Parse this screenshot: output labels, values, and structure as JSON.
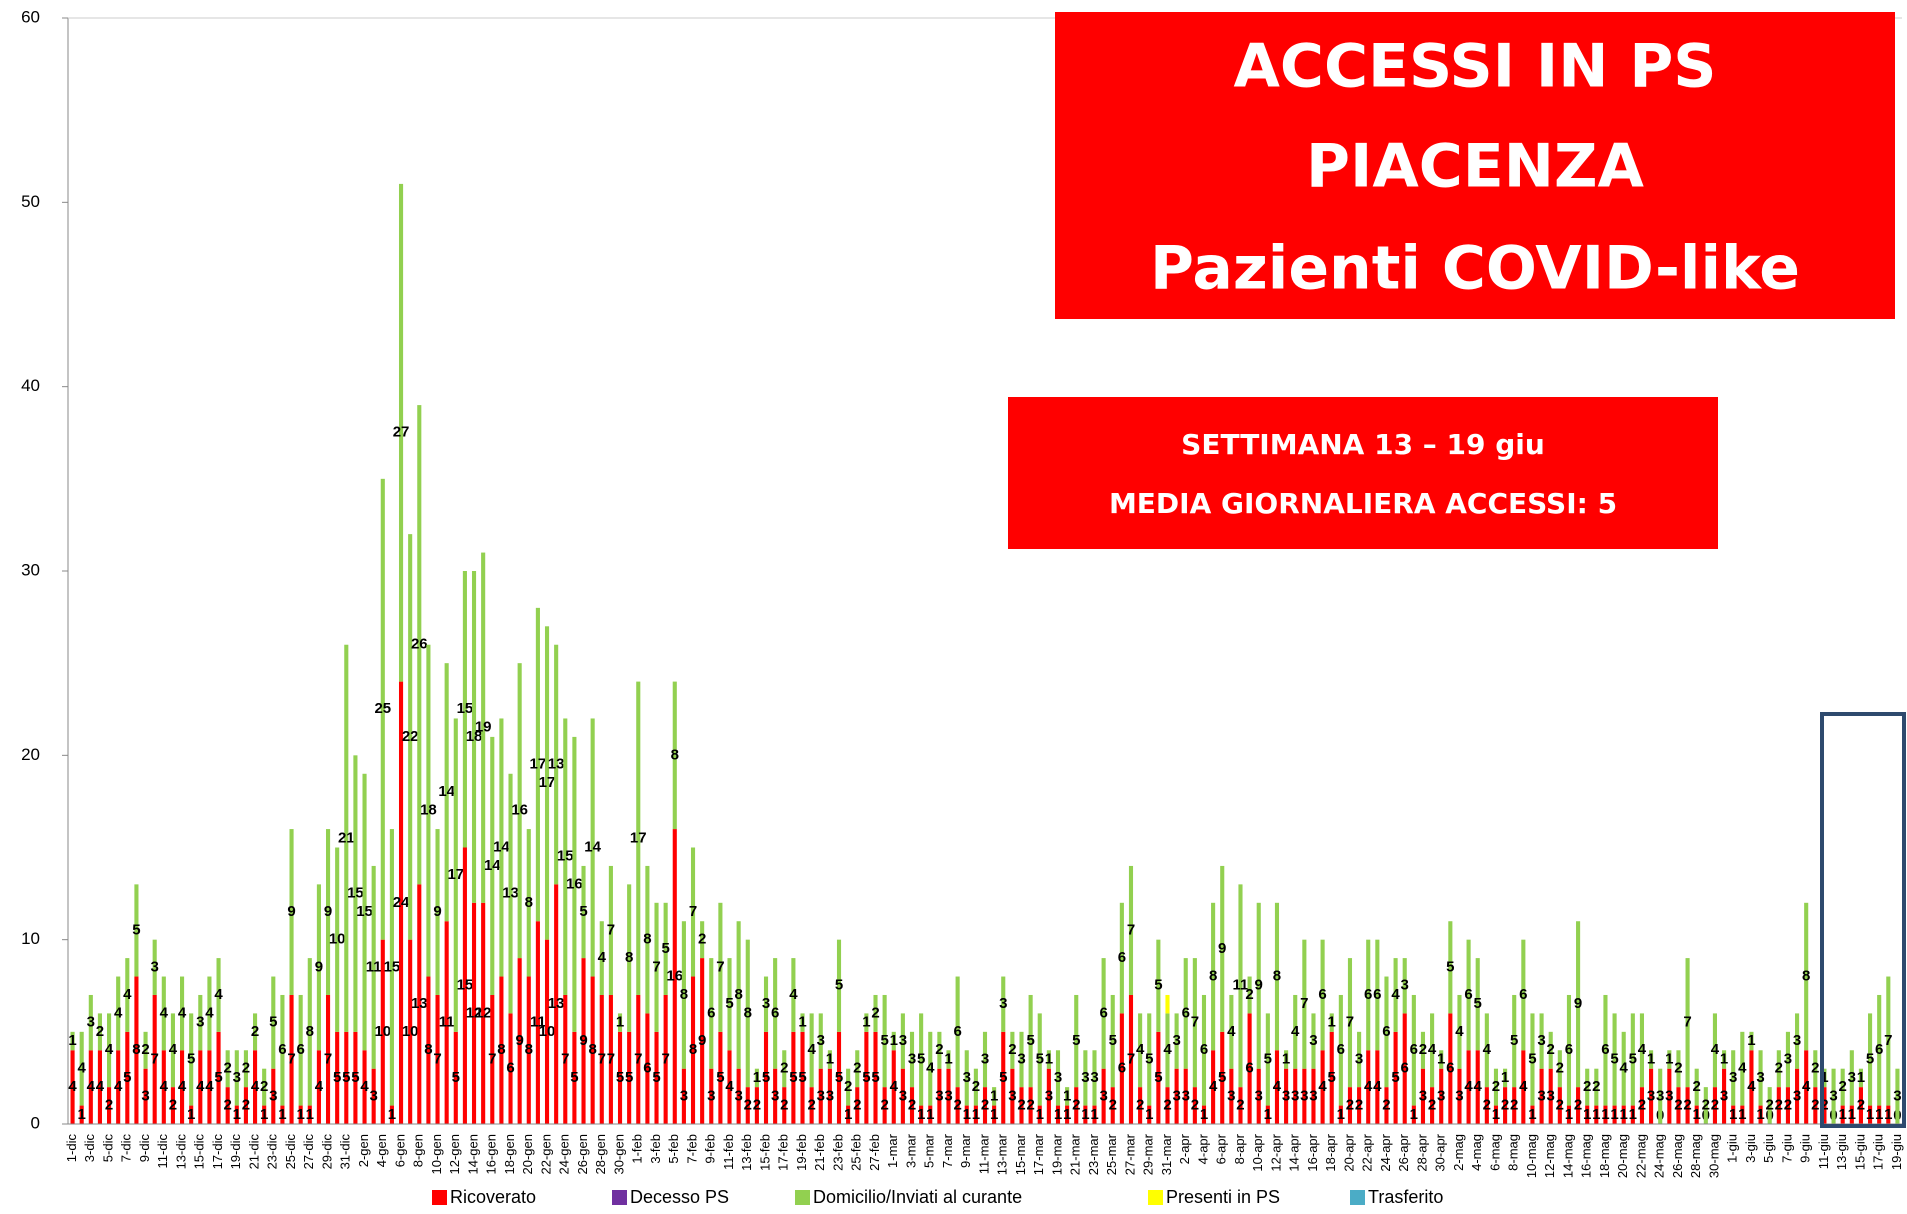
{
  "chart_data": {
    "type": "stacked_bar",
    "title": [
      "ACCESSI IN PS",
      "PIACENZA",
      "Pazienti COVID-like"
    ],
    "annotations": [
      "SETTIMANA  13 – 19 giu",
      "MEDIA GIORNALIERA ACCESSI: 5"
    ],
    "categories": [
      "1-dic",
      null,
      "3-dic",
      null,
      "5-dic",
      null,
      "7-dic",
      null,
      "9-dic",
      null,
      "11-dic",
      null,
      "13-dic",
      null,
      "15-dic",
      null,
      "17-dic",
      null,
      "19-dic",
      null,
      "21-dic",
      null,
      "23-dic",
      null,
      "25-dic",
      null,
      "27-dic",
      null,
      "29-dic",
      null,
      "31-dic",
      null,
      "2-gen",
      null,
      "4-gen",
      null,
      "6-gen",
      null,
      "8-gen",
      null,
      "10-gen",
      null,
      "12-gen",
      null,
      "14-gen",
      null,
      "16-gen",
      null,
      "18-gen",
      null,
      "20-gen",
      null,
      "22-gen",
      null,
      "24-gen",
      null,
      "26-gen",
      null,
      "28-gen",
      null,
      "30-gen",
      null,
      "1-feb",
      null,
      "3-feb",
      null,
      "5-feb",
      null,
      "7-feb",
      null,
      "9-feb",
      null,
      "11-feb",
      null,
      "13-feb",
      null,
      "15-feb",
      null,
      "17-feb",
      null,
      "19-feb",
      null,
      "21-feb",
      null,
      "23-feb",
      null,
      "25-feb",
      null,
      "27-feb",
      null,
      "1-mar",
      null,
      "3-mar",
      null,
      "5-mar",
      null,
      "7-mar",
      null,
      "9-mar",
      null,
      "11-mar",
      null,
      "13-mar",
      null,
      "15-mar",
      null,
      "17-mar",
      null,
      "19-mar",
      null,
      "21-mar",
      null,
      "23-mar",
      null,
      "25-mar",
      null,
      "27-mar",
      null,
      "29-mar",
      null,
      "31-mar",
      null,
      "2-apr",
      null,
      "4-apr",
      null,
      "6-apr",
      null,
      "8-apr",
      null,
      "10-apr",
      null,
      "12-apr",
      null,
      "14-apr",
      null,
      "16-apr",
      null,
      "18-apr",
      null,
      "20-apr",
      null,
      "22-apr",
      null,
      "24-apr",
      null,
      "26-apr",
      null,
      "28-apr",
      null,
      "30-apr",
      null,
      "2-mag",
      null,
      "4-mag",
      null,
      "6-mag",
      null,
      "8-mag",
      null,
      "10-mag",
      null,
      "12-mag",
      null,
      "14-mag",
      null,
      "16-mag",
      null,
      "18-mag",
      null,
      "20-mag",
      null,
      "22-mag",
      null,
      "24-mag",
      null,
      "26-mag",
      null,
      "28-mag",
      null,
      "30-mag",
      null,
      "1-giu",
      null,
      "3-giu",
      null,
      "5-giu",
      null,
      "7-giu",
      null,
      "9-giu",
      null,
      "11-giu",
      null,
      "13-giu",
      null,
      "15-giu",
      null,
      "17-giu",
      null,
      "19-giu"
    ],
    "series": [
      {
        "name": "Ricoverato",
        "color": "#ff0000",
        "labels": true,
        "values": [
          4,
          1,
          4,
          4,
          2,
          4,
          5,
          8,
          3,
          7,
          4,
          2,
          4,
          1,
          4,
          4,
          5,
          2,
          1,
          2,
          4,
          1,
          3,
          1,
          7,
          1,
          1,
          4,
          7,
          5,
          5,
          5,
          4,
          3,
          10,
          1,
          24,
          10,
          13,
          8,
          7,
          11,
          5,
          15,
          12,
          12,
          7,
          8,
          6,
          9,
          8,
          11,
          10,
          13,
          7,
          5,
          9,
          8,
          7,
          7,
          5,
          5,
          7,
          6,
          5,
          7,
          16,
          3,
          8,
          9,
          3,
          5,
          4,
          3,
          2,
          2,
          5,
          3,
          2,
          5,
          5,
          2,
          3,
          3,
          5,
          1,
          2,
          5,
          5,
          2,
          4,
          3,
          2,
          1,
          1,
          3,
          3,
          2,
          1,
          1,
          2,
          1,
          5,
          3,
          2,
          2,
          1,
          3,
          1,
          1,
          2,
          1,
          1,
          3,
          2,
          6,
          7,
          2,
          1,
          5,
          2,
          3,
          3,
          2,
          1,
          4,
          5,
          3,
          2,
          6,
          3,
          1,
          4,
          3,
          3,
          3,
          3,
          4,
          5,
          1,
          2,
          2,
          4,
          4,
          2,
          5,
          6,
          1,
          3,
          2,
          3,
          6,
          3,
          4,
          4,
          2,
          1,
          2,
          2,
          4,
          1,
          3,
          3,
          2,
          1,
          2,
          1,
          1,
          1,
          1,
          1,
          1,
          2,
          3,
          0,
          3,
          2,
          2,
          1,
          0,
          2,
          3,
          1,
          1,
          4,
          1,
          0,
          2,
          2,
          3,
          4,
          2,
          2,
          0,
          1,
          1,
          2,
          1,
          1,
          1,
          0
        ]
      },
      {
        "name": "Decesso PS",
        "color": "#7030a0",
        "labels": false,
        "values": [
          0,
          0,
          0,
          0,
          0,
          0,
          0,
          0,
          0,
          0,
          0,
          0,
          0,
          0,
          0,
          0,
          0,
          0,
          0,
          0,
          0,
          0,
          0,
          0,
          0,
          0,
          0,
          0,
          0,
          0,
          0,
          0,
          0,
          0,
          0,
          0,
          0,
          0,
          0,
          0,
          0,
          0,
          0,
          0,
          0,
          0,
          0,
          0,
          0,
          0,
          0,
          0,
          0,
          0,
          0,
          0,
          0,
          0,
          0,
          0,
          0,
          0,
          0,
          0,
          0,
          0,
          0,
          0,
          0,
          0,
          0,
          0,
          0,
          0,
          0,
          0,
          0,
          0,
          0,
          0,
          0,
          0,
          0,
          0,
          0,
          0,
          0,
          0,
          0,
          0,
          0,
          0,
          0,
          0,
          0,
          0,
          0,
          0,
          0,
          0,
          0,
          0,
          0,
          0,
          0,
          0,
          0,
          0,
          0,
          0,
          0,
          0,
          0,
          0,
          0,
          0,
          0,
          0,
          0,
          0,
          0,
          0,
          0,
          0,
          0,
          0,
          0,
          0,
          0,
          0,
          0,
          0,
          0,
          0,
          0,
          0,
          0,
          0,
          0,
          0,
          0,
          0,
          0,
          0,
          0,
          0,
          0,
          0,
          0,
          0,
          0,
          0,
          0,
          0,
          0,
          0,
          0,
          0,
          0,
          0,
          0,
          0,
          0,
          0,
          0,
          0,
          0,
          0,
          0,
          0,
          0,
          0,
          0,
          0,
          0,
          0,
          0,
          0,
          0,
          0,
          0,
          0,
          0,
          0,
          0,
          0,
          0,
          0,
          0,
          0,
          0,
          0,
          0,
          0,
          0,
          0,
          0,
          0,
          0,
          0,
          0
        ]
      },
      {
        "name": "Domicilio/Inviati al curante",
        "color": "#92d050",
        "labels": true,
        "values": [
          1,
          4,
          3,
          2,
          4,
          4,
          4,
          5,
          2,
          3,
          4,
          4,
          4,
          5,
          3,
          4,
          4,
          2,
          3,
          2,
          2,
          2,
          5,
          6,
          9,
          6,
          8,
          9,
          9,
          10,
          21,
          15,
          15,
          11,
          25,
          15,
          27,
          22,
          26,
          18,
          9,
          14,
          17,
          15,
          18,
          19,
          14,
          14,
          13,
          16,
          8,
          17,
          17,
          13,
          15,
          16,
          5,
          14,
          4,
          7,
          1,
          8,
          17,
          8,
          7,
          5,
          8,
          8,
          7,
          2,
          6,
          7,
          5,
          8,
          8,
          1,
          3,
          6,
          2,
          4,
          1,
          4,
          3,
          1,
          5,
          2,
          2,
          1,
          2,
          5,
          1,
          3,
          3,
          5,
          4,
          2,
          1,
          6,
          3,
          2,
          3,
          1,
          3,
          2,
          3,
          5,
          5,
          1,
          3,
          1,
          5,
          3,
          3,
          6,
          5,
          6,
          7,
          4,
          5,
          5,
          4,
          3,
          6,
          7,
          6,
          8,
          9,
          4,
          11,
          2,
          9,
          5,
          8,
          1,
          4,
          7,
          3,
          6,
          1,
          6,
          7,
          3,
          6,
          6,
          6,
          4,
          3,
          6,
          2,
          4,
          1,
          5,
          4,
          6,
          5,
          4,
          2,
          1,
          5,
          6,
          5,
          3,
          2,
          2,
          6,
          9,
          2,
          2,
          6,
          5,
          4,
          5,
          4,
          1,
          3,
          1,
          2,
          7,
          2,
          2,
          4,
          1,
          3,
          4,
          1,
          3,
          2,
          2,
          3,
          3,
          8,
          2,
          1,
          3,
          2,
          3,
          1,
          5,
          6,
          7,
          3
        ]
      },
      {
        "name": "Presenti in PS",
        "color": "#ffff00",
        "labels": false,
        "values": [
          0,
          0,
          0,
          0,
          0,
          0,
          0,
          0,
          0,
          0,
          0,
          0,
          0,
          0,
          0,
          0,
          0,
          0,
          0,
          0,
          0,
          0,
          0,
          0,
          0,
          0,
          0,
          0,
          0,
          0,
          0,
          0,
          0,
          0,
          0,
          0,
          0,
          0,
          0,
          0,
          0,
          0,
          0,
          0,
          0,
          0,
          0,
          0,
          0,
          0,
          0,
          0,
          0,
          0,
          0,
          0,
          0,
          0,
          0,
          0,
          0,
          0,
          0,
          0,
          0,
          0,
          0,
          0,
          0,
          0,
          0,
          0,
          0,
          0,
          0,
          0,
          0,
          0,
          0,
          0,
          0,
          0,
          0,
          0,
          0,
          0,
          0,
          0,
          0,
          0,
          0,
          0,
          0,
          0,
          0,
          0,
          0,
          0,
          0,
          0,
          0,
          0,
          0,
          0,
          0,
          0,
          0,
          0,
          0,
          0,
          0,
          0,
          0,
          0,
          0,
          0,
          0,
          0,
          0,
          0,
          1,
          0,
          0,
          0,
          0,
          0,
          0,
          0,
          0,
          0,
          0,
          0,
          0,
          0,
          0,
          0,
          0,
          0,
          0,
          0,
          0,
          0,
          0,
          0,
          0,
          0,
          0,
          0,
          0,
          0,
          0,
          0,
          0,
          0,
          0,
          0,
          0,
          0,
          0,
          0,
          0,
          0,
          0,
          0,
          0,
          0,
          0,
          0,
          0,
          0,
          0,
          0,
          0,
          0,
          0,
          0,
          0,
          0,
          0,
          0,
          0,
          0,
          0,
          0,
          0,
          0,
          0,
          0,
          0,
          0,
          0,
          0,
          0,
          0,
          0,
          0,
          0,
          0,
          0,
          0,
          0
        ]
      },
      {
        "name": "Trasferito",
        "color": "#4bacc6",
        "labels": false,
        "values": [
          0,
          0,
          0,
          0,
          0,
          0,
          0,
          0,
          0,
          0,
          0,
          0,
          0,
          0,
          0,
          0,
          0,
          0,
          0,
          0,
          0,
          0,
          0,
          0,
          0,
          0,
          0,
          0,
          0,
          0,
          0,
          0,
          0,
          0,
          0,
          0,
          0,
          0,
          0,
          0,
          0,
          0,
          0,
          0,
          0,
          0,
          0,
          0,
          0,
          0,
          0,
          0,
          0,
          0,
          0,
          0,
          0,
          0,
          0,
          0,
          0,
          0,
          0,
          0,
          0,
          0,
          0,
          0,
          0,
          0,
          0,
          0,
          0,
          0,
          0,
          0,
          0,
          0,
          0,
          0,
          0,
          0,
          0,
          0,
          0,
          0,
          0,
          0,
          0,
          0,
          0,
          0,
          0,
          0,
          0,
          0,
          0,
          0,
          0,
          0,
          0,
          0,
          0,
          0,
          0,
          0,
          0,
          0,
          0,
          0,
          0,
          0,
          0,
          0,
          0,
          0,
          0,
          0,
          0,
          0,
          0,
          0,
          0,
          0,
          0,
          0,
          0,
          0,
          0,
          0,
          0,
          0,
          0,
          0,
          0,
          0,
          0,
          0,
          0,
          0,
          0,
          0,
          0,
          0,
          0,
          0,
          0,
          0,
          0,
          0,
          0,
          0,
          0,
          0,
          0,
          0,
          0,
          0,
          0,
          0,
          0,
          0,
          0,
          0,
          0,
          0,
          0,
          0,
          0,
          0,
          0,
          0,
          0,
          0,
          0,
          0,
          0,
          0,
          0,
          0,
          0,
          0,
          0,
          0,
          0,
          0,
          0,
          0,
          0,
          0,
          0,
          0,
          0,
          0,
          0,
          0,
          0,
          0,
          0,
          0,
          0
        ]
      }
    ],
    "ylim": [
      0,
      60
    ],
    "yticks": [
      0,
      10,
      20,
      30,
      40,
      50,
      60
    ],
    "grid": false,
    "legend": "bottom"
  }
}
